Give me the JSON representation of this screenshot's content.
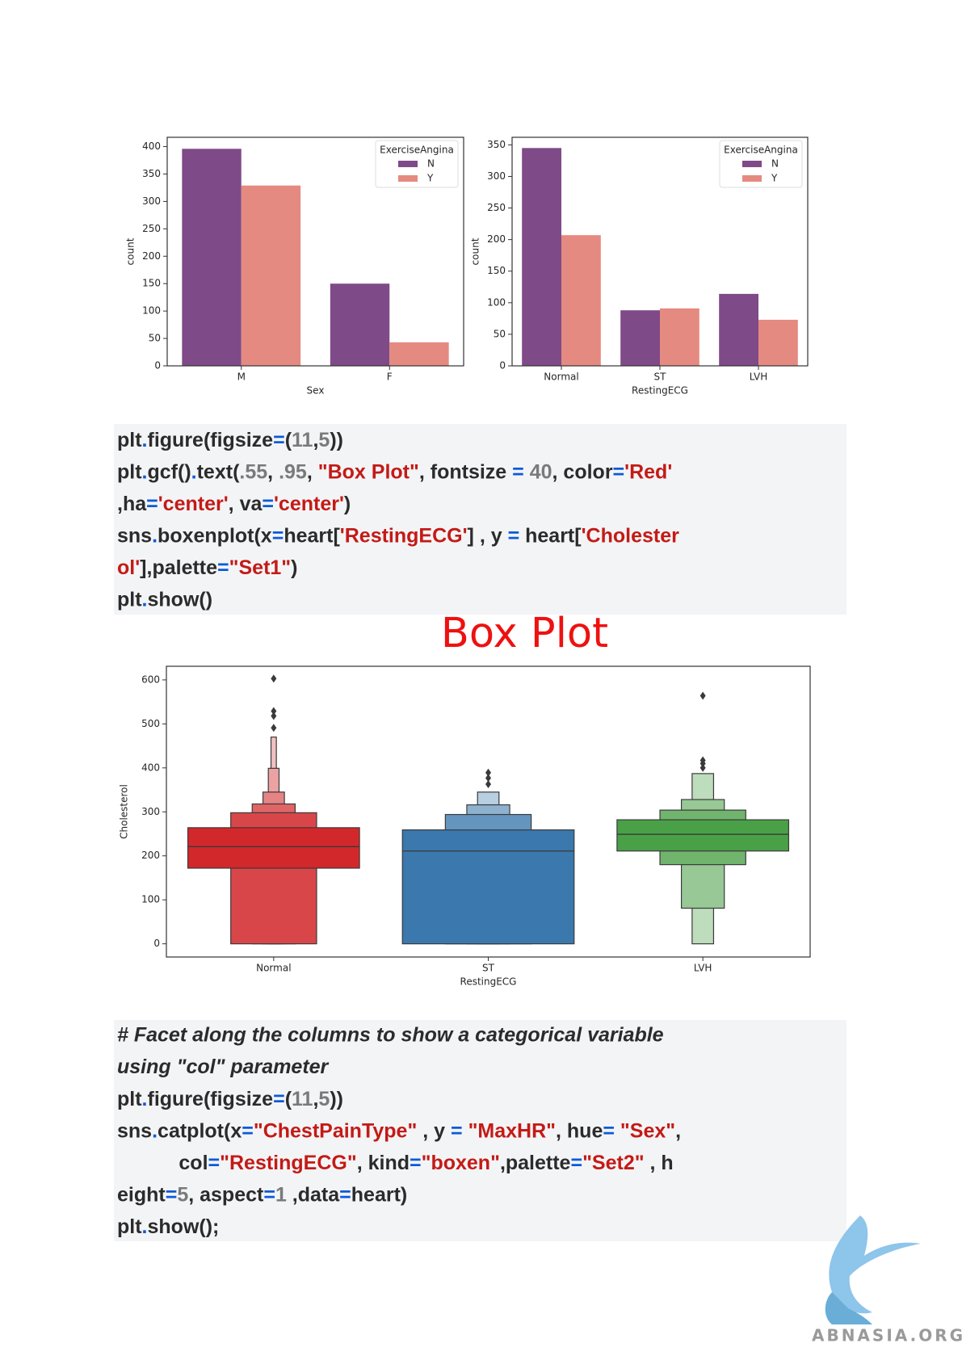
{
  "chart_data": [
    {
      "type": "bar",
      "xlabel": "Sex",
      "ylabel": "count",
      "categories": [
        "M",
        "F"
      ],
      "series": [
        {
          "name": "N",
          "color": "#7f4a88",
          "values": [
            396,
            150
          ]
        },
        {
          "name": "Y",
          "color": "#e58a80",
          "values": [
            329,
            43
          ]
        }
      ],
      "legend_title": "ExerciseAngina",
      "legend": "upper right",
      "ylim": [
        0,
        417
      ],
      "yticks": [
        0,
        50,
        100,
        150,
        200,
        250,
        300,
        350,
        400
      ]
    },
    {
      "type": "bar",
      "xlabel": "RestingECG",
      "ylabel": "count",
      "categories": [
        "Normal",
        "ST",
        "LVH"
      ],
      "series": [
        {
          "name": "N",
          "color": "#7f4a88",
          "values": [
            345,
            88,
            114
          ]
        },
        {
          "name": "Y",
          "color": "#e58a80",
          "values": [
            207,
            91,
            73
          ]
        }
      ],
      "legend_title": "ExerciseAngina",
      "legend": "upper right",
      "ylim": [
        0,
        362
      ],
      "yticks": [
        0,
        50,
        100,
        150,
        200,
        250,
        300,
        350
      ]
    },
    {
      "type": "boxen",
      "title": "Box Plot",
      "title_color": "#ee1111",
      "xlabel": "RestingECG",
      "ylabel": "Cholesterol",
      "categories": [
        "Normal",
        "ST",
        "LVH"
      ],
      "boxes": [
        {
          "color": "#d3282b",
          "levels": [
            [
              172,
              264
            ],
            [
              0,
              298
            ],
            [
              0,
              318
            ],
            [
              0,
              345
            ],
            [
              0,
              399
            ],
            [
              0,
              470
            ]
          ],
          "median": 221,
          "outliers": [
            491,
            518,
            529,
            603
          ]
        },
        {
          "color": "#3a78ad",
          "levels": [
            [
              0,
              259
            ],
            [
              0,
              294
            ],
            [
              0,
              316
            ],
            [
              0,
              345
            ]
          ],
          "median": 211,
          "outliers": [
            363,
            377,
            389
          ]
        },
        {
          "color": "#4aa047",
          "levels": [
            [
              211,
              282
            ],
            [
              180,
              304
            ],
            [
              81,
              328
            ],
            [
              0,
              387
            ]
          ],
          "median": 249,
          "outliers": [
            400,
            410,
            417,
            564
          ]
        }
      ],
      "ylim": [
        -30,
        631
      ],
      "yticks": [
        0,
        100,
        200,
        300,
        400,
        500,
        600
      ]
    }
  ],
  "code_blocks": [
    {
      "comment": [],
      "lines": [
        "plt.figure(figsize=(11,5))",
        "plt.gcf().text(.55, .95, \"Box Plot\", fontsize = 40, color='Red'",
        ",ha='center', va='center')",
        "sns.boxenplot(x=heart['RestingECG'] , y = heart['Cholester",
        "ol'],palette=\"Set1\")",
        "plt.show()"
      ]
    },
    {
      "comment": [
        "# Facet along the columns to show a categorical variable",
        "using \"col\" parameter"
      ],
      "lines": [
        "plt.figure(figsize=(11,5))",
        "sns.catplot(x=\"ChestPainType\" , y = \"MaxHR\", hue= \"Sex\",",
        "           col=\"RestingECG\", kind=\"boxen\",palette=\"Set2\" , h",
        "eight=5, aspect=1 ,data=heart)",
        "plt.show();"
      ]
    }
  ],
  "watermark": "ABNASIA.ORG"
}
